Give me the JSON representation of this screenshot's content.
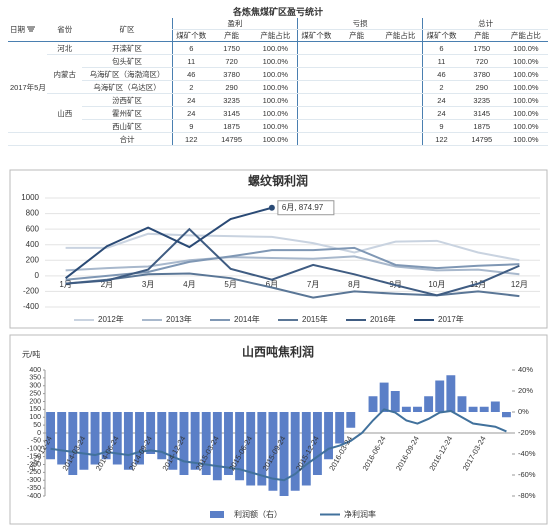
{
  "table": {
    "title": "各炼焦煤矿区盈亏统计",
    "headers": [
      "日期",
      "省份",
      "矿区"
    ],
    "groups": [
      "盈利",
      "亏损",
      "总计"
    ],
    "subheaders": [
      "煤矿个数",
      "产能",
      "产能占比"
    ],
    "date": "2017年5月",
    "provinces": [
      {
        "name": "河北",
        "regions": [
          {
            "name": "开滦矿区",
            "profit": [
              6,
              1750,
              "100.0%"
            ],
            "total": [
              6,
              1750,
              "100.0%"
            ]
          }
        ]
      },
      {
        "name": "内蒙古",
        "regions": [
          {
            "name": "包头矿区",
            "profit": [
              11,
              720,
              "100.0%"
            ],
            "total": [
              11,
              720,
              "100.0%"
            ]
          },
          {
            "name": "乌海矿区（海渤湾区）",
            "profit": [
              46,
              3780,
              "100.0%"
            ],
            "total": [
              46,
              3780,
              "100.0%"
            ]
          },
          {
            "name": "乌海矿区（乌达区）",
            "profit": [
              2,
              290,
              "100.0%"
            ],
            "total": [
              2,
              290,
              "100.0%"
            ]
          }
        ]
      },
      {
        "name": "山西",
        "regions": [
          {
            "name": "汾西矿区",
            "profit": [
              24,
              3235,
              "100.0%"
            ],
            "total": [
              24,
              3235,
              "100.0%"
            ]
          },
          {
            "name": "霍州矿区",
            "profit": [
              24,
              3145,
              "100.0%"
            ],
            "total": [
              24,
              3145,
              "100.0%"
            ]
          },
          {
            "name": "西山矿区",
            "profit": [
              9,
              1875,
              "100.0%"
            ],
            "total": [
              9,
              1875,
              "100.0%"
            ]
          }
        ]
      }
    ],
    "sum": {
      "name": "合计",
      "profit": [
        122,
        14795,
        "100.0%"
      ],
      "total": [
        122,
        14795,
        "100.0%"
      ]
    }
  },
  "chart_data": [
    {
      "type": "line",
      "title": "螺纹钢利润",
      "categories": [
        "1月",
        "2月",
        "3月",
        "4月",
        "5月",
        "6月",
        "7月",
        "8月",
        "9月",
        "10月",
        "11月",
        "12月"
      ],
      "series": [
        {
          "name": "2012年",
          "color": "#c9d3e0",
          "values": [
            360,
            360,
            540,
            520,
            510,
            500,
            420,
            300,
            440,
            450,
            300,
            200
          ]
        },
        {
          "name": "2013年",
          "color": "#a8b8cc",
          "values": [
            70,
            100,
            120,
            200,
            240,
            230,
            220,
            250,
            120,
            70,
            80,
            20
          ]
        },
        {
          "name": "2014年",
          "color": "#7f97b4",
          "values": [
            -50,
            0,
            50,
            180,
            250,
            330,
            330,
            360,
            140,
            100,
            130,
            150
          ]
        },
        {
          "name": "2015年",
          "color": "#5a7696",
          "values": [
            -100,
            -50,
            20,
            30,
            -30,
            -150,
            -280,
            -200,
            -230,
            -250,
            -200,
            -260
          ]
        },
        {
          "name": "2016年",
          "color": "#3f5c82",
          "values": [
            -100,
            -60,
            80,
            600,
            90,
            -50,
            140,
            20,
            -120,
            -250,
            -100,
            130
          ]
        },
        {
          "name": "2017年",
          "color": "#2a4a75",
          "values": [
            -30,
            380,
            620,
            370,
            730,
            874.97,
            null,
            null,
            null,
            null,
            null,
            null
          ]
        }
      ],
      "annotation": "6月, 874.97",
      "ylim": [
        -400,
        1000
      ],
      "yticks": [
        -400,
        -200,
        0,
        200,
        400,
        600,
        800,
        1000
      ],
      "grid": true,
      "legend": "bottom"
    },
    {
      "type": "combo",
      "title": "山西吨焦利润",
      "y_label": "元/吨",
      "categories": [
        "2013-12-24",
        null,
        null,
        "2014-03-24",
        null,
        null,
        "2014-06-24",
        null,
        null,
        "2014-09-24",
        null,
        null,
        "2014-12-24",
        null,
        null,
        "2015-03-24",
        null,
        null,
        "2015-06-24",
        null,
        null,
        "2015-09-24",
        null,
        null,
        "2015-12-24",
        null,
        null,
        "2016-03-24",
        null,
        null,
        "2016-06-24",
        null,
        null,
        "2016-09-24",
        null,
        null,
        "2016-12-24",
        null,
        null,
        "2017-03-24",
        null,
        null
      ],
      "series": [
        {
          "name": "利润额（右）",
          "type": "bar",
          "axis": "y2",
          "color": "#5b7fc7",
          "values": [
            -45,
            -50,
            -60,
            -55,
            -50,
            -45,
            -50,
            -55,
            -50,
            -40,
            -45,
            -55,
            -60,
            -55,
            -60,
            -65,
            -60,
            -65,
            -70,
            -70,
            -75,
            -80,
            -75,
            -70,
            -60,
            -45,
            -30,
            -15,
            0,
            15,
            28,
            20,
            5,
            5,
            15,
            30,
            35,
            15,
            5,
            5,
            10,
            -5
          ]
        },
        {
          "name": "净利润率",
          "type": "line",
          "color": "#41719c",
          "values": [
            -100,
            -110,
            -120,
            -130,
            -140,
            -120,
            -130,
            -140,
            -120,
            -110,
            -120,
            -150,
            -180,
            -190,
            -200,
            -210,
            -220,
            -230,
            -250,
            -270,
            -290,
            -300,
            -260,
            -200,
            -150,
            -100,
            -80,
            -50,
            0,
            80,
            150,
            130,
            80,
            60,
            90,
            130,
            140,
            100,
            60,
            50,
            40,
            10
          ]
        }
      ],
      "ylim": [
        -400,
        400
      ],
      "yticks": [
        -400,
        -350,
        -300,
        -250,
        -200,
        -150,
        -100,
        -50,
        0,
        50,
        100,
        150,
        200,
        250,
        300,
        350,
        400
      ],
      "y2lim": [
        -80,
        40
      ],
      "y2ticks": [
        {
          "value": -80,
          "label": "-80%"
        },
        {
          "value": -60,
          "label": "-60%"
        },
        {
          "value": -40,
          "label": "-40%"
        },
        {
          "value": -20,
          "label": "-20%"
        },
        {
          "value": 0,
          "label": "0%"
        },
        {
          "value": 20,
          "label": "20%"
        },
        {
          "value": 40,
          "label": "40%"
        }
      ],
      "grid": false,
      "legend": "bottom"
    }
  ]
}
